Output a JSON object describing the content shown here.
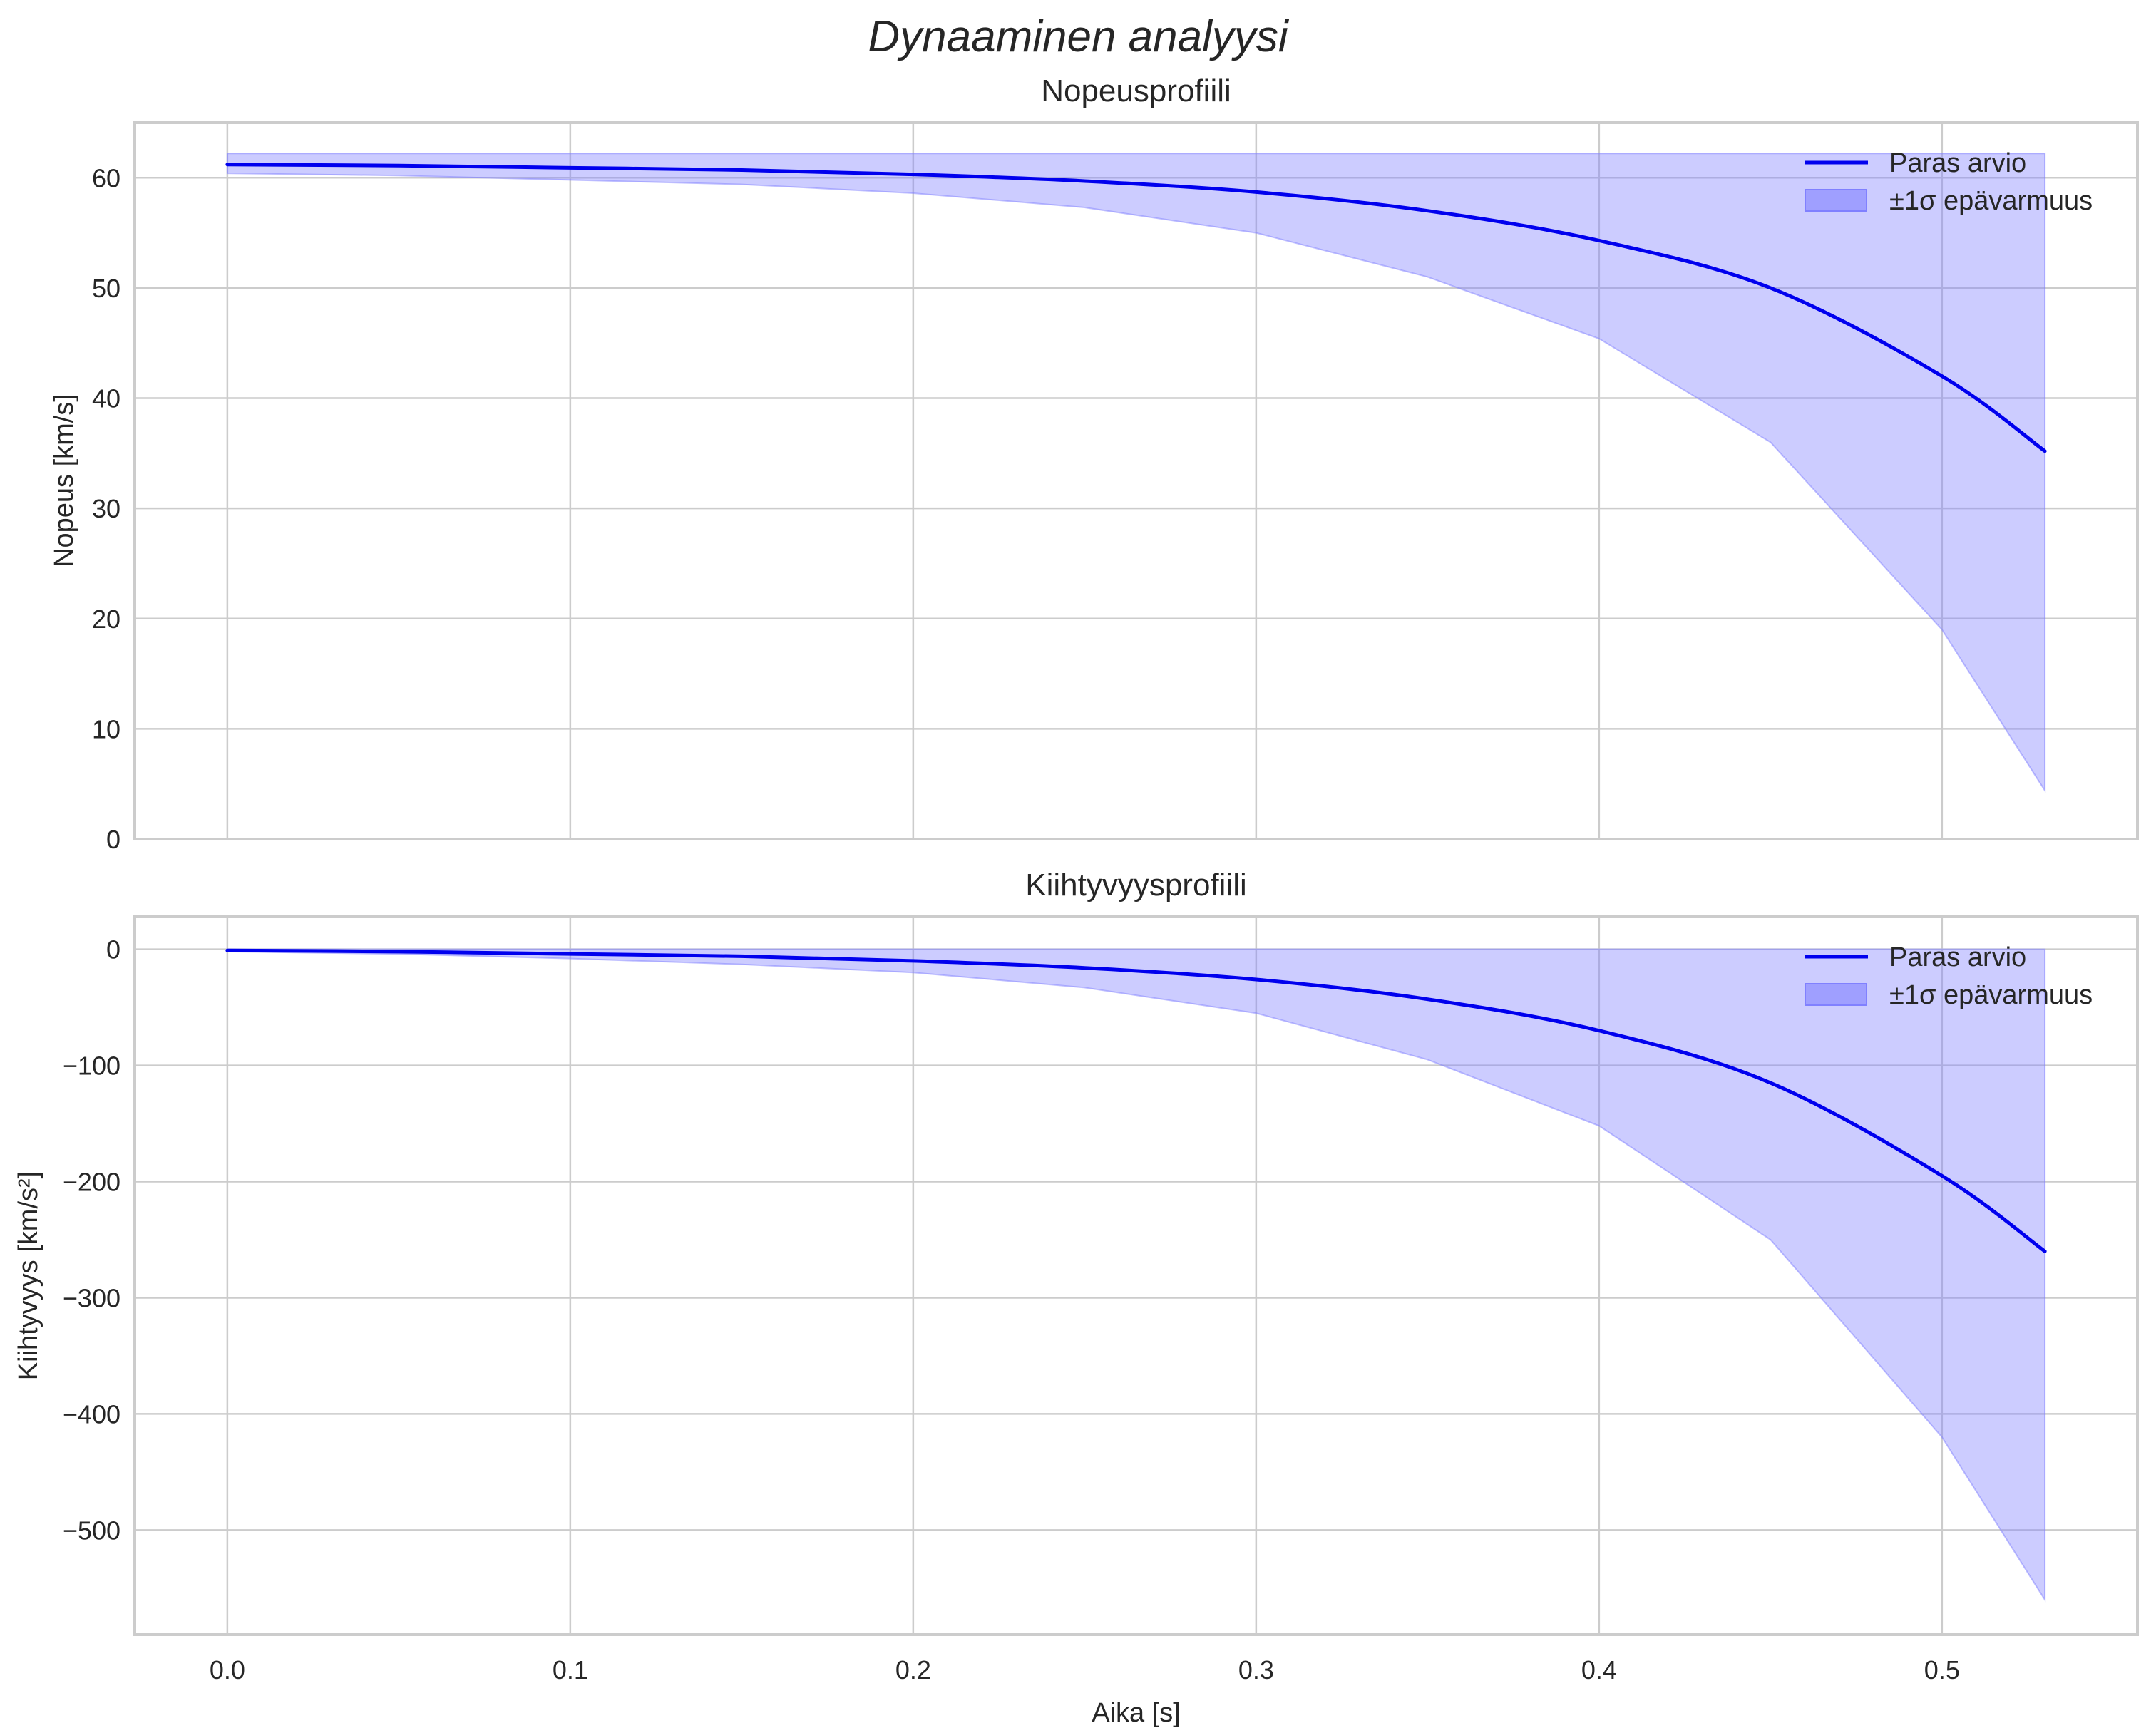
{
  "figure": {
    "suptitle": "Dynaaminen analyysi"
  },
  "colors": {
    "line": "#0000ee",
    "band": "#8080ff",
    "grid": "#cccccc",
    "text": "#262626"
  },
  "chart_data": [
    {
      "type": "line",
      "title": "Nopeusprofiili",
      "xlabel": "",
      "ylabel": "Nopeus [km/s]",
      "xlim": [
        -0.027,
        0.557
      ],
      "ylim": [
        0,
        65
      ],
      "xticks": [
        "0.0",
        "0.1",
        "0.2",
        "0.3",
        "0.4",
        "0.5"
      ],
      "yticks": [
        "0",
        "10",
        "20",
        "30",
        "40",
        "50",
        "60"
      ],
      "ytick_values": [
        0,
        10,
        20,
        30,
        40,
        50,
        60
      ],
      "grid": true,
      "legend": {
        "position": "upper right",
        "entries": [
          "Paras arvio",
          "±1σ epävarmuus"
        ]
      },
      "x": [
        0.0,
        0.05,
        0.1,
        0.15,
        0.2,
        0.25,
        0.3,
        0.35,
        0.4,
        0.45,
        0.5,
        0.53
      ],
      "series": [
        {
          "name": "Paras arvio",
          "values": [
            61.2,
            61.1,
            60.9,
            60.7,
            60.3,
            59.7,
            58.7,
            57.0,
            54.3,
            50.0,
            42.0,
            35.2
          ]
        },
        {
          "name": "±1σ epävarmuus (upper)",
          "values": [
            62.2,
            62.2,
            62.2,
            62.2,
            62.2,
            62.2,
            62.2,
            62.2,
            62.2,
            62.2,
            62.2,
            62.2
          ]
        },
        {
          "name": "±1σ epävarmuus (lower)",
          "values": [
            60.4,
            60.2,
            59.8,
            59.4,
            58.6,
            57.3,
            55.0,
            51.0,
            45.4,
            36.0,
            19.0,
            4.4
          ]
        }
      ]
    },
    {
      "type": "line",
      "title": "Kiihtyvyysprofiili",
      "xlabel": "Aika [s]",
      "ylabel": "Kiihtyvyys [km/s²]",
      "xlim": [
        -0.027,
        0.557
      ],
      "ylim": [
        -590,
        28
      ],
      "xticks": [
        "0.0",
        "0.1",
        "0.2",
        "0.3",
        "0.4",
        "0.5"
      ],
      "yticks": [
        "0",
        "−100",
        "−200",
        "−300",
        "−400",
        "−500"
      ],
      "ytick_values": [
        0,
        -100,
        -200,
        -300,
        -400,
        -500
      ],
      "grid": true,
      "legend": {
        "position": "upper right",
        "entries": [
          "Paras arvio",
          "±1σ epävarmuus"
        ]
      },
      "x": [
        0.0,
        0.05,
        0.1,
        0.15,
        0.2,
        0.25,
        0.3,
        0.35,
        0.4,
        0.45,
        0.5,
        0.53
      ],
      "series": [
        {
          "name": "Paras arvio",
          "values": [
            -1,
            -2,
            -4,
            -6,
            -10,
            -16,
            -26,
            -43,
            -70,
            -115,
            -195,
            -260
          ]
        },
        {
          "name": "±1σ epävarmuus (upper)",
          "values": [
            0,
            0,
            0,
            0,
            0,
            0,
            0,
            0,
            0,
            0,
            0,
            0
          ]
        },
        {
          "name": "±1σ epävarmuus (lower)",
          "values": [
            -2,
            -4,
            -8,
            -13,
            -20,
            -33,
            -55,
            -95,
            -152,
            -250,
            -420,
            -560
          ]
        }
      ]
    }
  ]
}
